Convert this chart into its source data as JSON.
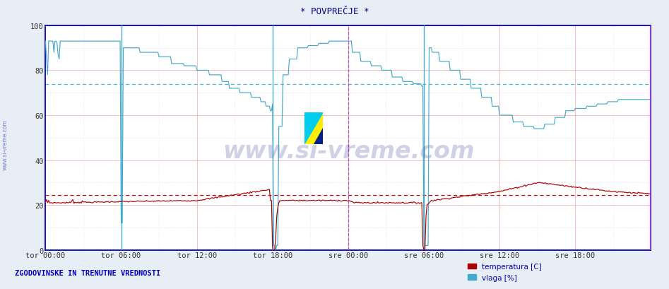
{
  "title": "* POVPREČJE *",
  "bg_color": "#e8eef5",
  "plot_bg_color": "#ffffff",
  "grid_color_major": "#ffbbbb",
  "grid_color_minor": "#ddddee",
  "xlim": [
    0,
    576
  ],
  "ylim": [
    0,
    100
  ],
  "yticks": [
    0,
    20,
    40,
    60,
    80,
    100
  ],
  "xtick_labels": [
    "tor 00:00",
    "tor 06:00",
    "tor 12:00",
    "tor 18:00",
    "sre 00:00",
    "sre 06:00",
    "sre 12:00",
    "sre 18:00",
    ""
  ],
  "xtick_positions": [
    0,
    72,
    144,
    216,
    288,
    360,
    432,
    504,
    576
  ],
  "temp_color": "#aa0000",
  "vlaga_color": "#44aacc",
  "temp_avg_line": 24.5,
  "vlaga_avg_line": 74.0,
  "temp_avg_color": "#cc0000",
  "vlaga_avg_color": "#44bbdd",
  "vline_tor06_color": "#44aacc",
  "vline_tor18_color": "#44aacc",
  "vline_sre00_color": "#cc44cc",
  "vline_sre06_color": "#44aacc",
  "vline_end_color": "#cc44cc",
  "vline_sre00_x": 288,
  "vline_end_x": 575,
  "vline_tor06_x": 72,
  "vline_tor18_x": 216,
  "vline_sre06_x": 360,
  "watermark": "www.si-vreme.com",
  "watermark_color": "#000077",
  "watermark_alpha": 0.18,
  "bottom_label": "ZGODOVINSKE IN TRENUTNE VREDNOSTI",
  "legend_temp": "temperatura [C]",
  "legend_vlaga": "vlaga [%]",
  "temp_color_legend": "#aa0000",
  "vlaga_color_legend": "#44aacc",
  "left_label": "www.si-vreme.com"
}
